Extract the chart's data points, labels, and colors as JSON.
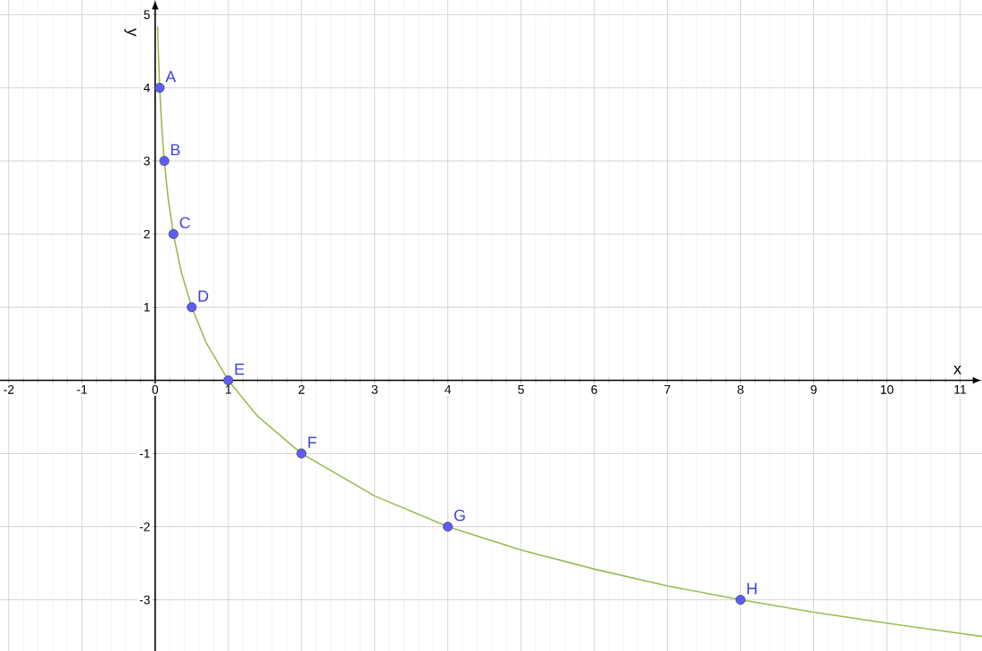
{
  "chart_data": {
    "type": "line",
    "xlabel": "x",
    "ylabel": "y",
    "xlim": [
      -2.12,
      11.3
    ],
    "ylim": [
      -3.7,
      5.2
    ],
    "xticks": [
      -2,
      -1,
      0,
      1,
      2,
      3,
      4,
      5,
      6,
      7,
      8,
      9,
      10,
      11
    ],
    "yticks": [
      -3,
      -2,
      -1,
      1,
      2,
      3,
      4,
      5
    ],
    "grid": true,
    "series": [
      {
        "color": "#99bb55",
        "marker": "none",
        "x": [
          0.035,
          0.045,
          0.0625,
          0.09,
          0.125,
          0.18,
          0.25,
          0.35,
          0.5,
          0.7,
          1,
          1.4,
          2,
          3,
          4,
          5,
          6,
          7,
          8,
          9,
          10,
          11,
          11.3
        ],
        "values": [
          4.84,
          4.47,
          4,
          3.47,
          3,
          2.47,
          2,
          1.51,
          1,
          0.51,
          0,
          -0.49,
          -1,
          -1.58,
          -2,
          -2.32,
          -2.58,
          -2.81,
          -3,
          -3.17,
          -3.32,
          -3.46,
          -3.5
        ]
      },
      {
        "type": "scatter",
        "color": "#5c5cff",
        "marker": "circle",
        "x": [
          0.0625,
          0.125,
          0.25,
          0.5,
          1,
          2,
          4,
          8
        ],
        "values": [
          4,
          3,
          2,
          1,
          0,
          -1,
          -2,
          -3
        ]
      }
    ],
    "annotations": [
      {
        "text": "A",
        "x": 0.0625,
        "y": 4
      },
      {
        "text": "B",
        "x": 0.125,
        "y": 3
      },
      {
        "text": "C",
        "x": 0.25,
        "y": 2
      },
      {
        "text": "D",
        "x": 0.5,
        "y": 1
      },
      {
        "text": "E",
        "x": 1,
        "y": 0
      },
      {
        "text": "F",
        "x": 2,
        "y": -1
      },
      {
        "text": "G",
        "x": 4,
        "y": -2
      },
      {
        "text": "H",
        "x": 8,
        "y": -3
      }
    ]
  }
}
